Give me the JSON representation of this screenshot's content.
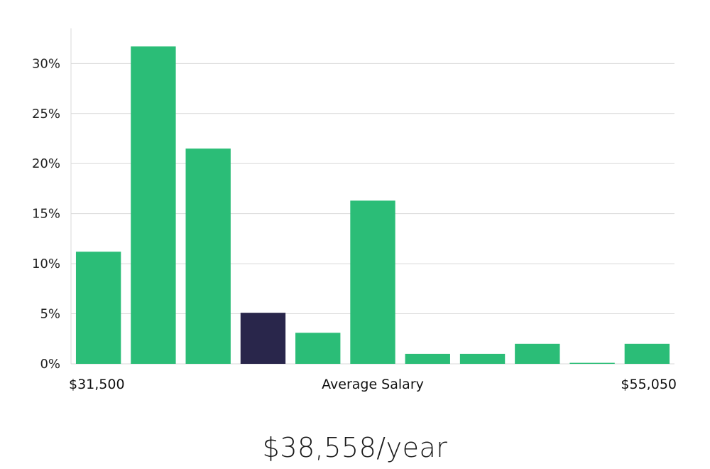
{
  "chart_data": {
    "type": "bar",
    "title": "",
    "xlabel": "Average Salary",
    "ylabel": "",
    "x_range_labels": {
      "min": "$31,500",
      "max": "$55,050"
    },
    "ylim": [
      0,
      33.5
    ],
    "yticks": [
      0,
      5,
      10,
      15,
      20,
      25,
      30
    ],
    "ytick_suffix": "%",
    "grid": true,
    "legend": "none",
    "values": [
      11.2,
      31.7,
      21.5,
      5.1,
      3.1,
      16.3,
      1.0,
      1.0,
      2.0,
      0.1,
      2.0
    ],
    "highlight_index": 3,
    "colors": {
      "bar": "#2bbd77",
      "highlight": "#29264b"
    }
  },
  "summary": {
    "salary": "$38,558/year"
  }
}
